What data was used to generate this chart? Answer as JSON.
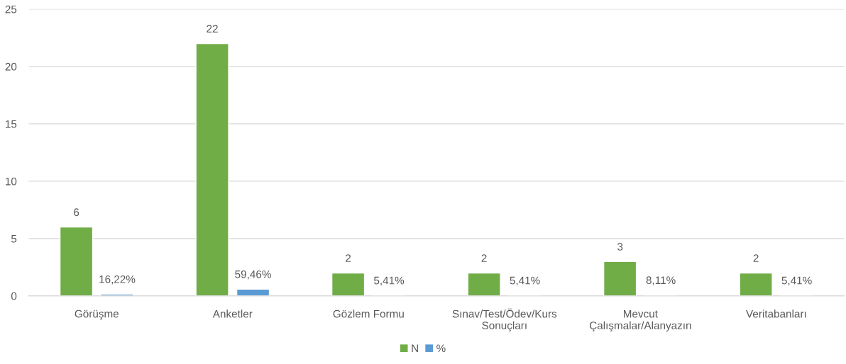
{
  "chart_data": {
    "type": "bar",
    "categories": [
      "Görüşme",
      "Anketler",
      "Gözlem Formu",
      "Sınav/Test/Ödev/Kurs\nSonuçları",
      "Mevcut\nÇalışmalar/Alanyazın",
      "Veritabanları"
    ],
    "series": [
      {
        "name": "N",
        "color": "#70ad47",
        "values": [
          6,
          22,
          2,
          2,
          3,
          2
        ],
        "value_labels": [
          "6",
          "22",
          "2",
          "2",
          "3",
          "2"
        ]
      },
      {
        "name": "%",
        "color": "#5b9bd5",
        "values": [
          0.1622,
          0.5946,
          0.0541,
          0.0541,
          0.0811,
          0.0541
        ],
        "value_labels": [
          "16,22%",
          "59,46%",
          "5,41%",
          "5,41%",
          "8,11%",
          "5,41%"
        ]
      }
    ],
    "ylim": [
      0,
      25
    ],
    "yticks": [
      0,
      5,
      10,
      15,
      20,
      25
    ],
    "grid": "y",
    "legend": "bottom"
  }
}
